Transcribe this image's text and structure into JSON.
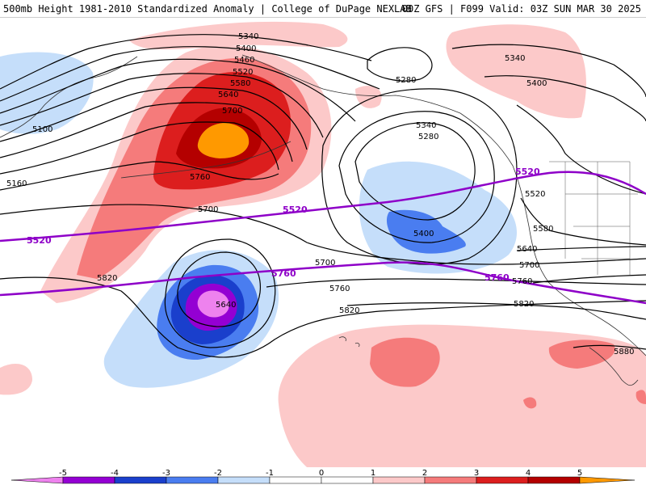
{
  "header": {
    "left_title": "500mb Height 1981-2010 Standardized Anomaly | College of DuPage NEXLAB",
    "right_title": "00Z GFS | F099 Valid: 03Z SUN MAR 30 2025"
  },
  "anomaly_colors": {
    "m5": "#ee82ee",
    "m4": "#9400d3",
    "m3": "#1a3fcc",
    "m2": "#4a7df0",
    "m1": "#c5defa",
    "p1": "#fcc9c9",
    "p2": "#f57b7b",
    "p3": "#dc1e1e",
    "p4": "#b40000",
    "p5": "#ff9900"
  },
  "colorbar": {
    "ticks": [
      "-5",
      "-4",
      "-3",
      "-2",
      "-1",
      "0",
      "1",
      "2",
      "3",
      "4",
      "5"
    ]
  },
  "height_contours": {
    "labels": [
      "5340",
      "5400",
      "5460",
      "5520",
      "5580",
      "5640",
      "5700",
      "5760",
      "5100",
      "5160",
      "5700",
      "5820",
      "5640",
      "5700",
      "5760",
      "5820",
      "5280",
      "5340",
      "5280",
      "5400",
      "5340",
      "5400",
      "5520",
      "5580",
      "5640",
      "5700",
      "5760",
      "5820",
      "5880"
    ],
    "reference_lines": [
      "5520",
      "5520",
      "5760",
      "5760",
      "5520"
    ]
  }
}
